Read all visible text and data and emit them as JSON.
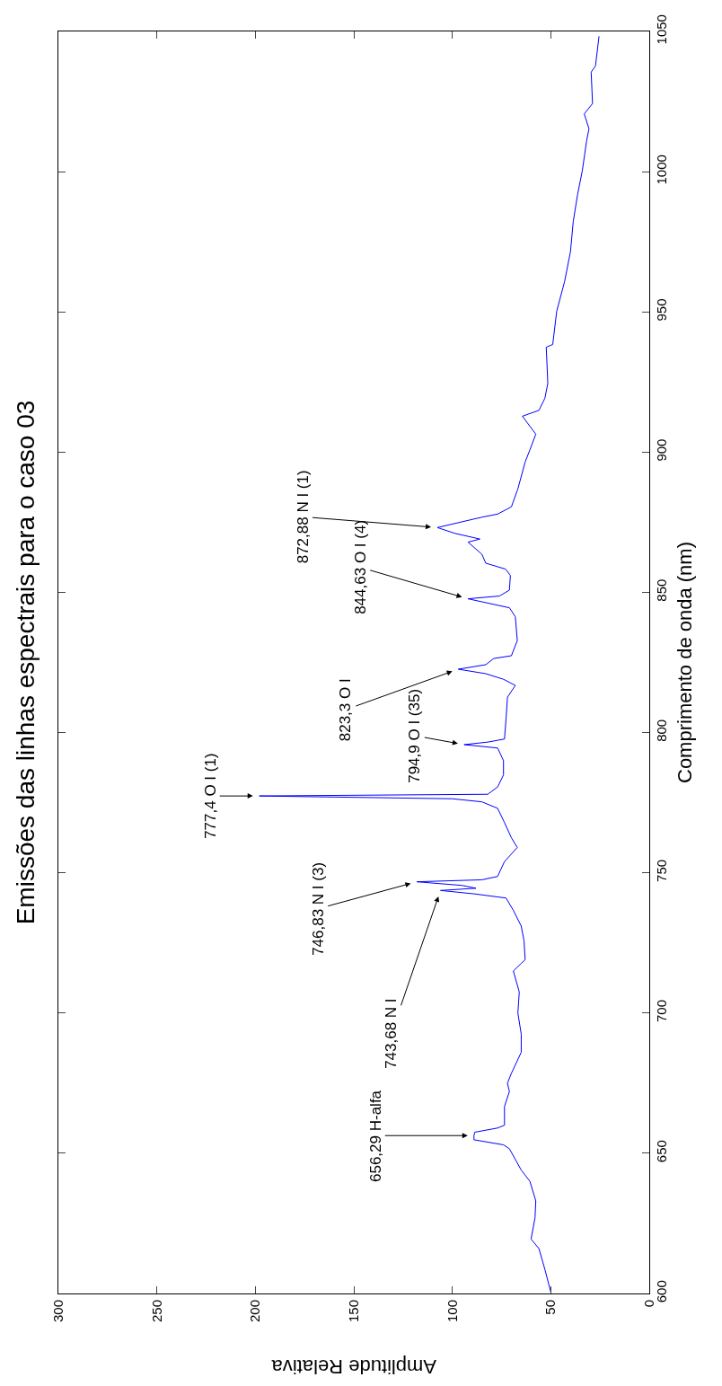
{
  "chart_data": {
    "type": "line",
    "title": "Emissões das linhas espectrais para o caso 03",
    "ylabel": "Comprimento de onda (nm)",
    "xlabel": "Amplitude Relativa",
    "ylim": [
      600,
      1050
    ],
    "yticks": [
      600,
      650,
      700,
      750,
      800,
      850,
      900,
      950,
      1000,
      1050
    ],
    "xlim": [
      300,
      0
    ],
    "xticks": [
      300,
      250,
      200,
      150,
      100,
      50,
      0
    ],
    "x": [
      50,
      53,
      56,
      60,
      58,
      57.6,
      60.6,
      65,
      71,
      74,
      89,
      89,
      88.6,
      77,
      73.5,
      73.5,
      71,
      72,
      70,
      65,
      65,
      66.7,
      66,
      69,
      65,
      63,
      63.6,
      65,
      69,
      72.7,
      89,
      106,
      88,
      95,
      118,
      85,
      77,
      73.5,
      67,
      70,
      73.5,
      77,
      85,
      100,
      198,
      82,
      77,
      74,
      74,
      77,
      94,
      82,
      73.5,
      72.7,
      72,
      68,
      74,
      83,
      97,
      83,
      79,
      70,
      67,
      68,
      71,
      92,
      76,
      71,
      70.5,
      73,
      83,
      85,
      92,
      86,
      98.5,
      107.6,
      85,
      77,
      70,
      66.7,
      63,
      60.6,
      57.6,
      64.4,
      56,
      53,
      51.5,
      52.3,
      49,
      47,
      43,
      40,
      38.6,
      36.4,
      34,
      31.8,
      30.6,
      33,
      28.8,
      29.5,
      27.3,
      25.5
    ],
    "series": [
      {
        "color": "#0000ff",
        "values": [
          600.5,
          608.6,
          616,
          619.4,
          627,
          633,
          640,
          644,
          651.6,
          653,
          654.8,
          656.3,
          657.5,
          659,
          660,
          666.7,
          672,
          675,
          678.5,
          686,
          692.5,
          700,
          707.5,
          715,
          717.7,
          719,
          725.8,
          731,
          736.6,
          741,
          742.5,
          743.7,
          744.5,
          745.5,
          746.8,
          747.5,
          748.7,
          754,
          759,
          762.5,
          767.9,
          773,
          775.3,
          776.4,
          777.4,
          778,
          780.6,
          784.9,
          790,
          794.5,
          795.7,
          796.6,
          797.7,
          805,
          812.6,
          816.8,
          819,
          821,
          822.6,
          824.2,
          826.4,
          827.4,
          832.8,
          841.3,
          844.5,
          847.7,
          848.7,
          850.8,
          856,
          858.3,
          860.4,
          863.6,
          867.9,
          869,
          871,
          873.1,
          876.8,
          877.9,
          880.5,
          886.9,
          896.5,
          900.8,
          906.4,
          912.8,
          914.9,
          919.2,
          924.5,
          937.4,
          938.4,
          950.2,
          960.8,
          971.5,
          982.2,
          991.8,
          1000.3,
          1011,
          1015.3,
          1020.6,
          1024.3,
          1035.5,
          1037.7,
          1048.3
        ]
      }
    ],
    "annotations": [
      {
        "text": "656,29 H-alfa",
        "y": 656.3,
        "x": 89
      },
      {
        "text": "743,68 N I",
        "y": 743.7,
        "x": 106
      },
      {
        "text": "746,83 N I (3)",
        "y": 746.8,
        "x": 118
      },
      {
        "text": "777,4 O I (1)",
        "y": 777.4,
        "x": 198
      },
      {
        "text": "794,9 O I (35)",
        "y": 795.7,
        "x": 94
      },
      {
        "text": "823,3 O I",
        "y": 822.6,
        "x": 97
      },
      {
        "text": "844,63 O I (4)",
        "y": 847.7,
        "x": 92
      },
      {
        "text": "872,88 N I (1)",
        "y": 873.1,
        "x": 107.6
      }
    ]
  }
}
